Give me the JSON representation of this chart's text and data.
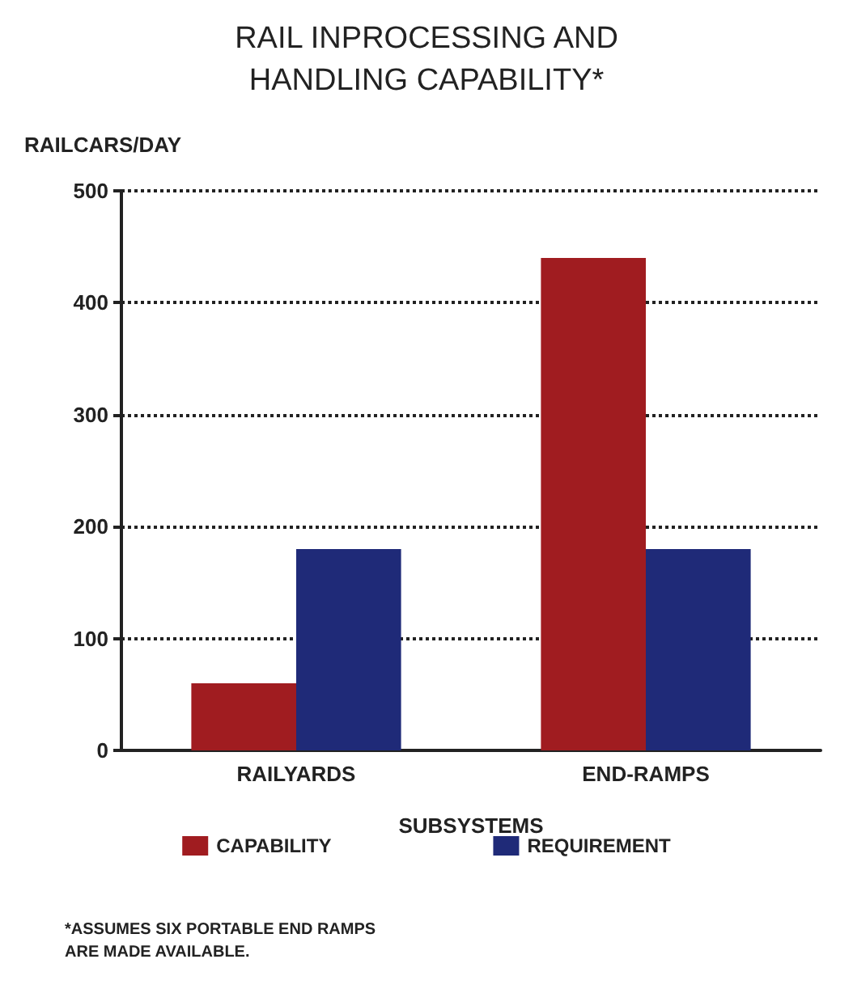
{
  "chart_data": {
    "type": "bar",
    "title": "RAIL INPROCESSING AND\nHANDLING CAPABILITY*",
    "ylabel": "RAILCARS/DAY",
    "xlabel": "SUBSYSTEMS",
    "categories": [
      "RAILYARDS",
      "END-RAMPS"
    ],
    "series": [
      {
        "name": "CAPABILITY",
        "color": "#a01c20",
        "values": [
          60,
          440
        ]
      },
      {
        "name": "REQUIREMENT",
        "color": "#1f2a78",
        "values": [
          180,
          180
        ]
      }
    ],
    "ylim": [
      0,
      500
    ],
    "yticks": [
      0,
      100,
      200,
      300,
      400,
      500
    ],
    "grid": "y",
    "line_style": "dotted",
    "legend": "bottom",
    "annotations": [
      "*ASSUMES SIX PORTABLE END RAMPS\nARE MADE AVAILABLE."
    ]
  }
}
